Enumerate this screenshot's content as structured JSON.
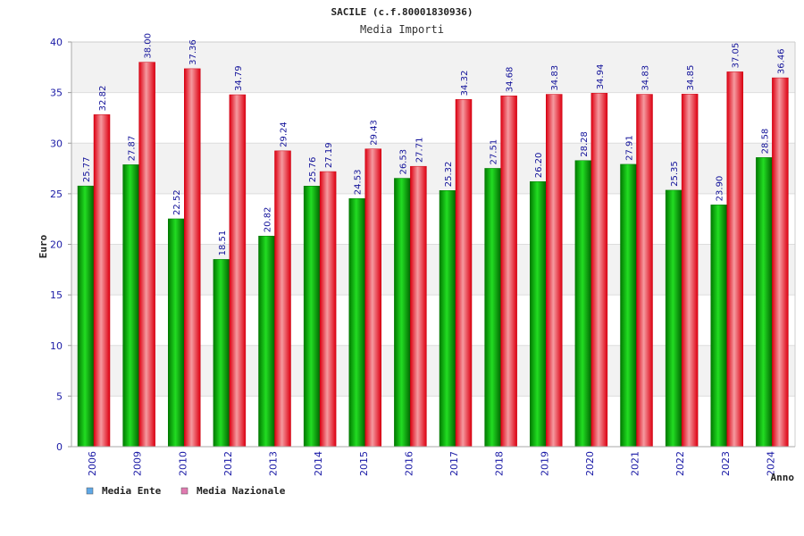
{
  "chart_data": {
    "type": "bar",
    "title": "SACILE (c.f.80001830936)",
    "subtitle": "Media Importi",
    "xlabel": "Anno",
    "ylabel": "Euro",
    "ylim": [
      0,
      40
    ],
    "yticks": [
      "0",
      "5",
      "10",
      "15",
      "20",
      "25",
      "30",
      "35",
      "40"
    ],
    "grid": true,
    "legend_position": "bottom-left",
    "categories": [
      "2006",
      "2009",
      "2010",
      "2012",
      "2013",
      "2014",
      "2015",
      "2016",
      "2017",
      "2018",
      "2019",
      "2020",
      "2021",
      "2022",
      "2023",
      "2024"
    ],
    "series": [
      {
        "name": "Media Ente",
        "color": "#00aa00",
        "legend_color": "#5fa8e6",
        "values": [
          25.77,
          27.87,
          22.52,
          18.51,
          20.82,
          25.76,
          24.53,
          26.53,
          25.32,
          27.51,
          26.2,
          28.28,
          27.91,
          25.35,
          23.9,
          28.58
        ],
        "labels": [
          "25.77",
          "27.87",
          "22.52",
          "18.51",
          "20.82",
          "25.76",
          "24.53",
          "26.53",
          "25.32",
          "27.51",
          "26.20",
          "28.28",
          "27.91",
          "25.35",
          "23.90",
          "28.58"
        ]
      },
      {
        "name": "Media Nazionale",
        "color": "#ee1122",
        "legend_color": "#e07ab0",
        "values": [
          32.82,
          38.0,
          37.36,
          34.79,
          29.24,
          27.19,
          29.43,
          27.71,
          34.32,
          34.68,
          34.83,
          34.94,
          34.83,
          34.85,
          37.05,
          36.46
        ],
        "labels": [
          "32.82",
          "38.00",
          "37.36",
          "34.79",
          "29.24",
          "27.19",
          "29.43",
          "27.71",
          "34.32",
          "34.68",
          "34.83",
          "34.94",
          "34.83",
          "34.85",
          "37.05",
          "36.46"
        ]
      }
    ]
  }
}
